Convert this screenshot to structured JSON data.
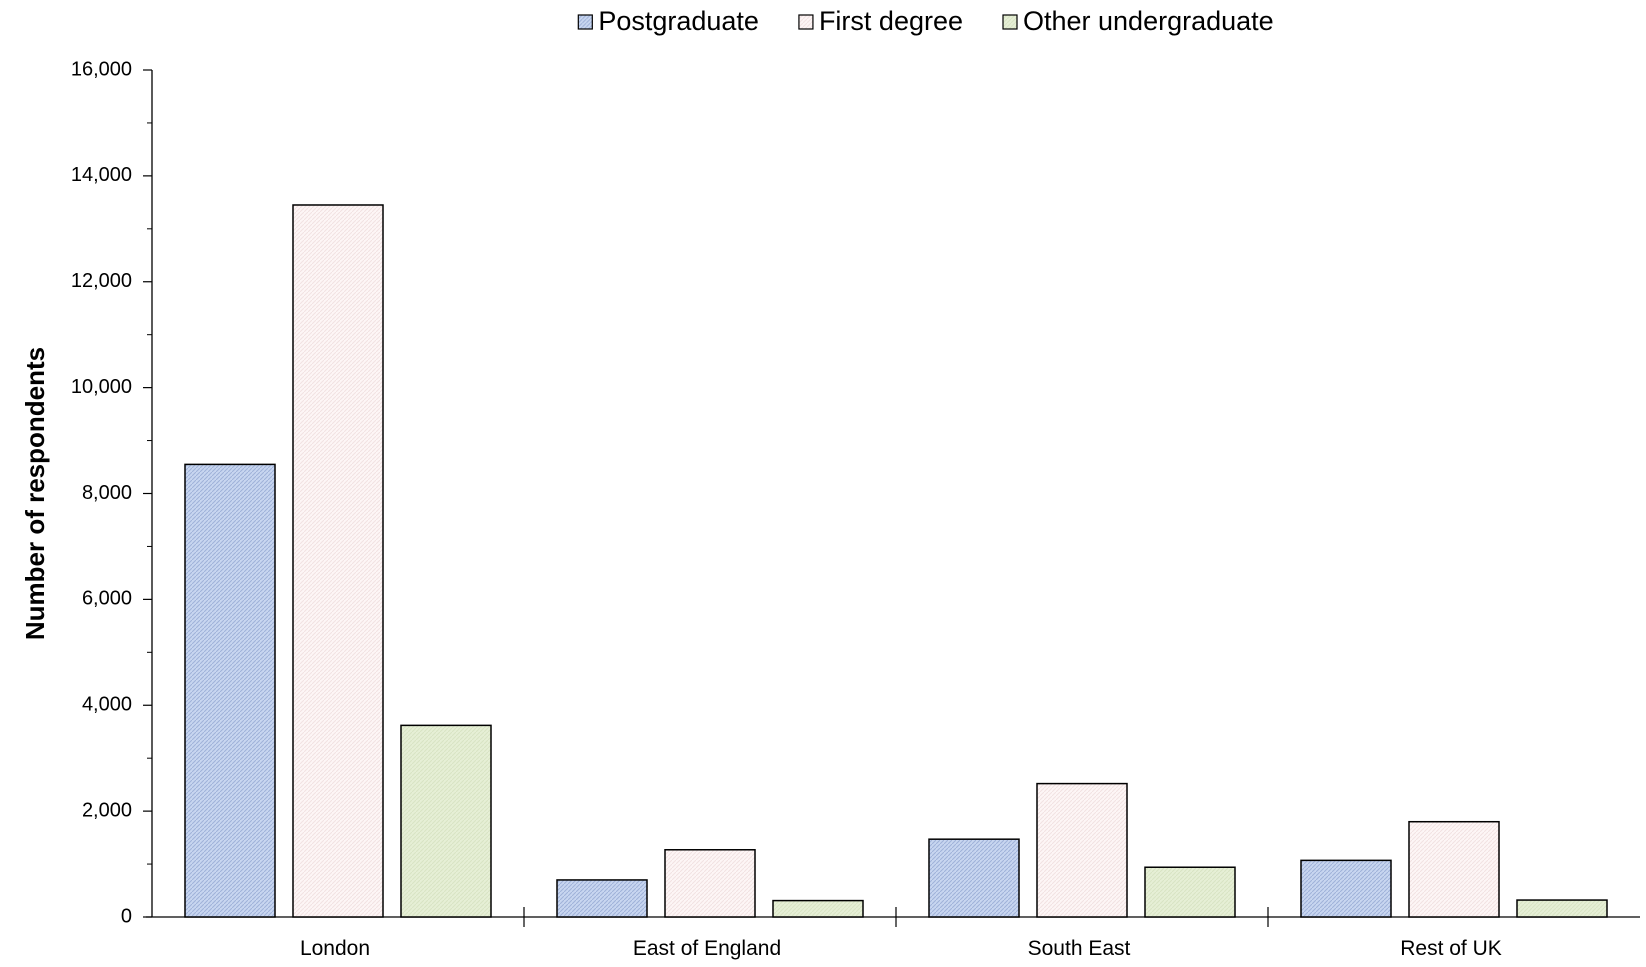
{
  "chart_data": {
    "type": "bar",
    "title": "",
    "xlabel": "",
    "ylabel": "Number of respondents",
    "categories": [
      "London",
      "East of England",
      "South East",
      "Rest of UK"
    ],
    "series": [
      {
        "name": "Postgraduate",
        "values": [
          8550,
          700,
          1470,
          1070
        ],
        "color": "#c5d3ee"
      },
      {
        "name": "First degree",
        "values": [
          13450,
          1270,
          2520,
          1800
        ],
        "color": "#fdf4f4"
      },
      {
        "name": "Other undergraduate",
        "values": [
          3620,
          310,
          940,
          320
        ],
        "color": "#e5eed3"
      }
    ],
    "ylim": [
      0,
      16000
    ],
    "yticks": [
      "0",
      "2,000",
      "4,000",
      "6,000",
      "8,000",
      "10,000",
      "12,000",
      "14,000",
      "16,000"
    ],
    "ytick_values": [
      0,
      2000,
      4000,
      6000,
      8000,
      10000,
      12000,
      14000,
      16000
    ],
    "grid": false,
    "legend_position": "top-center"
  }
}
